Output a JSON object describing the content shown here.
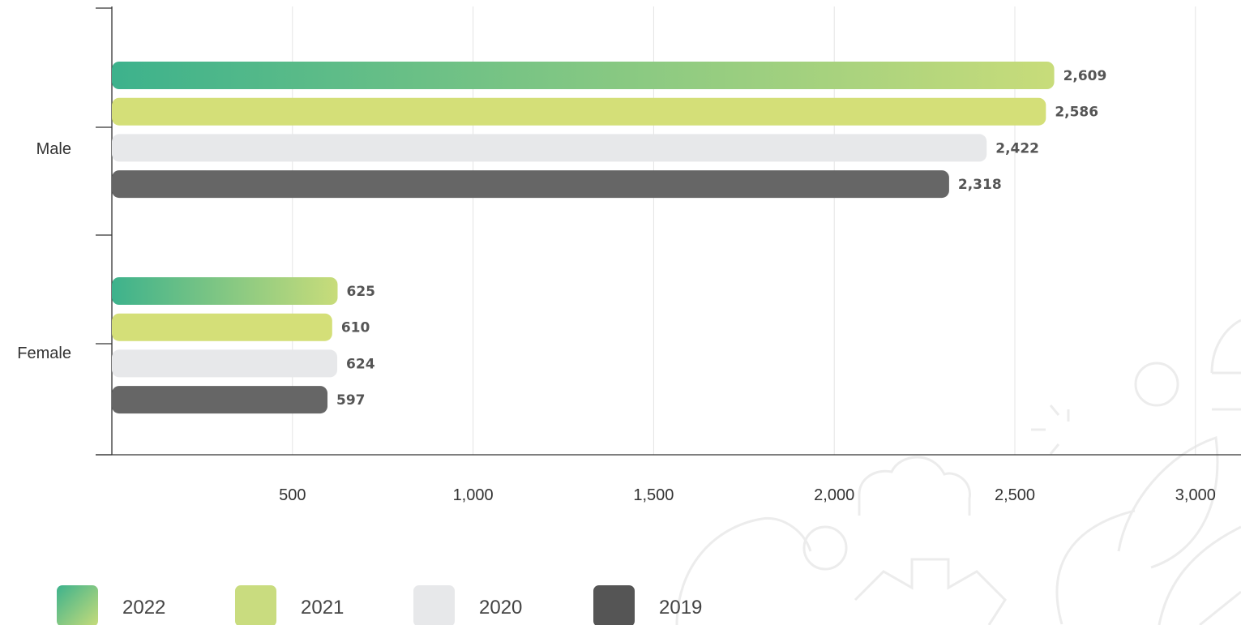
{
  "chart_data": {
    "type": "bar",
    "orientation": "horizontal",
    "categories": [
      "Male",
      "Female"
    ],
    "series": [
      {
        "name": "2022",
        "values": [
          2609,
          625
        ],
        "value_labels": [
          "2,609",
          "625"
        ],
        "color": "#3db28c",
        "gradient_to": "#c8dc7a"
      },
      {
        "name": "2021",
        "values": [
          2586,
          610
        ],
        "value_labels": [
          "2,586",
          "610"
        ],
        "color": "#d4df78"
      },
      {
        "name": "2020",
        "values": [
          2422,
          624
        ],
        "value_labels": [
          "2,422",
          "624"
        ],
        "color": "#e7e8ea"
      },
      {
        "name": "2019",
        "values": [
          2318,
          597
        ],
        "value_labels": [
          "2,318",
          "597"
        ],
        "color": "#666666"
      }
    ],
    "x_ticks": [
      500,
      1000,
      1500,
      2000,
      2500,
      3000
    ],
    "x_tick_labels": [
      "500",
      "1,000",
      "1,500",
      "2,000",
      "2,500",
      "3,000"
    ],
    "xlim": [
      0,
      3130
    ],
    "grid": "vertical",
    "legend_position": "bottom-left",
    "title": "",
    "xlabel": "",
    "ylabel": ""
  },
  "legend": {
    "items": [
      {
        "label": "2022",
        "color": "#3db28c",
        "gradient_to": "#c8dc7a"
      },
      {
        "label": "2021",
        "color": "#c9dc7f"
      },
      {
        "label": "2020",
        "color": "#e7e8ea"
      },
      {
        "label": "2019",
        "color": "#555555"
      }
    ]
  },
  "decoration": {
    "line_color": "#ececec"
  }
}
